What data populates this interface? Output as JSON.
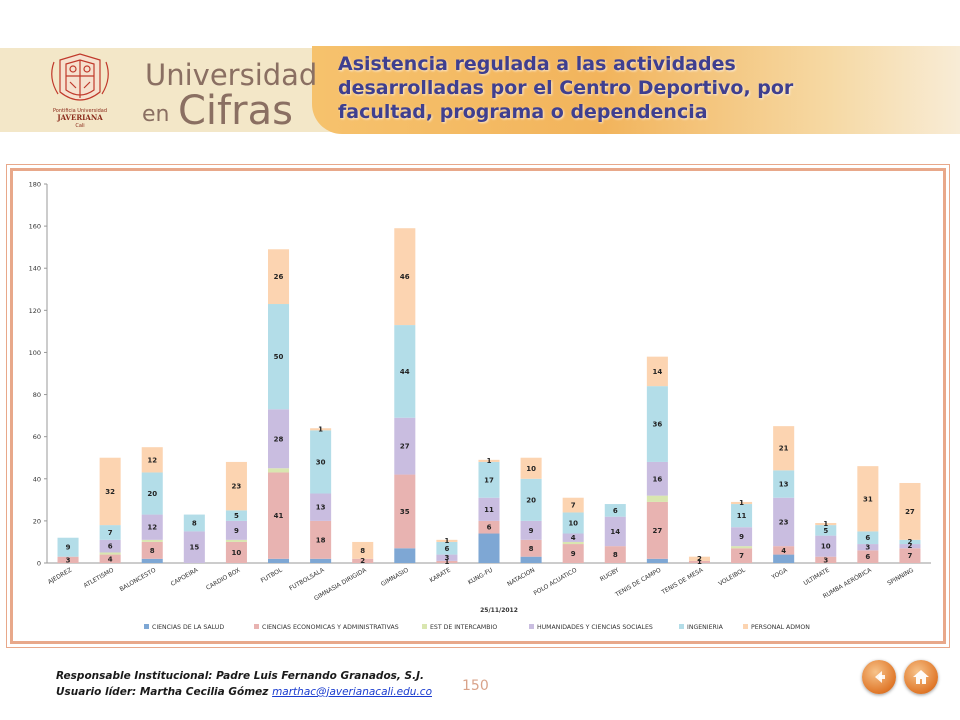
{
  "header": {
    "brand_line1": "Universidad",
    "brand_line2a": "en",
    "brand_line2b": "Cifras",
    "title": "Asistencia regulada a las actividades desarrolladas por el Centro Deportivo, por facultad, programa o dependencia",
    "logo_text": "Pontificia Universidad JAVERIANA Cali"
  },
  "colors": {
    "brand": "#8a6f62",
    "title": "#3f3f8f",
    "frame": "#e8a88a"
  },
  "chart_data": {
    "type": "bar",
    "stacked": true,
    "date_label": "25/11/2012",
    "ylim": [
      0,
      180
    ],
    "yticks": [
      0,
      20,
      40,
      60,
      80,
      100,
      120,
      140,
      160,
      180
    ],
    "grid": false,
    "legend_position": "bottom",
    "categories": [
      "AJEDREZ",
      "ATLETISMO",
      "BALONCESTO",
      "CAPOEIRA",
      "CARDIO BOX",
      "FUTBOL",
      "FUTBOLSALA",
      "GIMNASIA DIRIGIDA",
      "GIMNASIO",
      "KARATE",
      "KUNG-FU",
      "NATACION",
      "POLO ACUATICO",
      "RUGBY",
      "TENIS DE CAMPO",
      "TENIS DE MESA",
      "VOLEIBOL",
      "YOGA",
      "ULTIMATE",
      "RUMBA AERÓBICA",
      "SPINNING"
    ],
    "series": [
      {
        "name": "CIENCIAS DE LA SALUD",
        "color": "#7ea7d4",
        "values": [
          0,
          0,
          2,
          0,
          0,
          2,
          2,
          0,
          7,
          0,
          14,
          3,
          0,
          0,
          2,
          0,
          0,
          4,
          0,
          0,
          0
        ]
      },
      {
        "name": "CIENCIAS ECONOMICAS Y ADMINISTRATIVAS",
        "color": "#e8b3b1",
        "values": [
          3,
          4,
          8,
          0,
          10,
          41,
          18,
          2,
          35,
          1,
          6,
          8,
          9,
          8,
          27,
          1,
          7,
          4,
          3,
          6,
          7
        ]
      },
      {
        "name": "EST DE INTERCAMBIO",
        "color": "#d9e6b0",
        "values": [
          0,
          1,
          1,
          0,
          1,
          2,
          0,
          0,
          0,
          0,
          0,
          0,
          1,
          0,
          3,
          0,
          1,
          0,
          0,
          0,
          0
        ]
      },
      {
        "name": "HUMANIDADES Y CIENCIAS SOCIALES",
        "color": "#c9bde0",
        "values": [
          0,
          6,
          12,
          15,
          9,
          28,
          13,
          0,
          27,
          3,
          11,
          9,
          4,
          14,
          16,
          0,
          9,
          23,
          10,
          3,
          2
        ]
      },
      {
        "name": "INGENIERIA",
        "color": "#b3dde8",
        "values": [
          9,
          7,
          20,
          8,
          5,
          50,
          30,
          0,
          44,
          6,
          17,
          20,
          10,
          6,
          36,
          0,
          11,
          13,
          5,
          6,
          2
        ]
      },
      {
        "name": "PERSONAL ADMON",
        "color": "#fcd4b1",
        "values": [
          0,
          32,
          12,
          0,
          23,
          26,
          1,
          8,
          46,
          1,
          1,
          10,
          7,
          0,
          14,
          2,
          1,
          21,
          1,
          31,
          27
        ]
      }
    ],
    "labels": [
      [
        [
          1,
          "3"
        ],
        [
          4,
          "9"
        ]
      ],
      [
        [
          1,
          "4"
        ],
        [
          3,
          "6"
        ],
        [
          4,
          "7"
        ],
        [
          5,
          "32"
        ]
      ],
      [
        [
          1,
          "8"
        ],
        [
          3,
          "12"
        ],
        [
          4,
          "20"
        ],
        [
          5,
          "12"
        ]
      ],
      [
        [
          3,
          "15"
        ],
        [
          4,
          "8"
        ]
      ],
      [
        [
          1,
          "10"
        ],
        [
          3,
          "9"
        ],
        [
          4,
          "5"
        ],
        [
          5,
          "23"
        ]
      ],
      [
        [
          1,
          "41"
        ],
        [
          3,
          "28"
        ],
        [
          4,
          "50"
        ],
        [
          5,
          "26"
        ]
      ],
      [
        [
          1,
          "18"
        ],
        [
          3,
          "13"
        ],
        [
          4,
          "30"
        ],
        [
          5,
          "1"
        ]
      ],
      [
        [
          1,
          "2"
        ],
        [
          5,
          "8"
        ]
      ],
      [
        [
          1,
          "35"
        ],
        [
          3,
          "27"
        ],
        [
          4,
          "44"
        ],
        [
          5,
          "46"
        ]
      ],
      [
        [
          1,
          "1"
        ],
        [
          3,
          "3"
        ],
        [
          4,
          "6"
        ],
        [
          5,
          "1"
        ]
      ],
      [
        [
          1,
          "6"
        ],
        [
          3,
          "11"
        ],
        [
          4,
          "17"
        ],
        [
          5,
          "1"
        ]
      ],
      [
        [
          1,
          "8"
        ],
        [
          3,
          "9"
        ],
        [
          4,
          "20"
        ],
        [
          5,
          "10"
        ]
      ],
      [
        [
          1,
          "9"
        ],
        [
          3,
          "4"
        ],
        [
          4,
          "10"
        ],
        [
          5,
          "7"
        ]
      ],
      [
        [
          1,
          "8"
        ],
        [
          3,
          "14"
        ],
        [
          4,
          "6"
        ]
      ],
      [
        [
          1,
          "27"
        ],
        [
          3,
          "16"
        ],
        [
          4,
          "36"
        ],
        [
          5,
          "14"
        ]
      ],
      [
        [
          1,
          "1"
        ],
        [
          5,
          "2"
        ]
      ],
      [
        [
          1,
          "7"
        ],
        [
          3,
          "9"
        ],
        [
          4,
          "11"
        ],
        [
          5,
          "1"
        ]
      ],
      [
        [
          1,
          "4"
        ],
        [
          3,
          "23"
        ],
        [
          4,
          "13"
        ],
        [
          5,
          "21"
        ]
      ],
      [
        [
          1,
          "3"
        ],
        [
          3,
          "10"
        ],
        [
          4,
          "5"
        ],
        [
          5,
          "1"
        ]
      ],
      [
        [
          1,
          "6"
        ],
        [
          3,
          "3"
        ],
        [
          4,
          "6"
        ],
        [
          5,
          "31"
        ]
      ],
      [
        [
          1,
          "7"
        ],
        [
          3,
          "2"
        ],
        [
          4,
          "2"
        ],
        [
          5,
          "27"
        ]
      ]
    ]
  },
  "footer": {
    "line1": "Responsable Institucional: Padre Luis Fernando Granados, S.J.",
    "line2_prefix": "Usuario líder: Martha Cecilia Gómez",
    "email": "marthac@javerianacali.edu.co",
    "page_number": "150"
  },
  "nav": {
    "back_icon": "back-arrow-icon",
    "home_icon": "home-icon"
  }
}
